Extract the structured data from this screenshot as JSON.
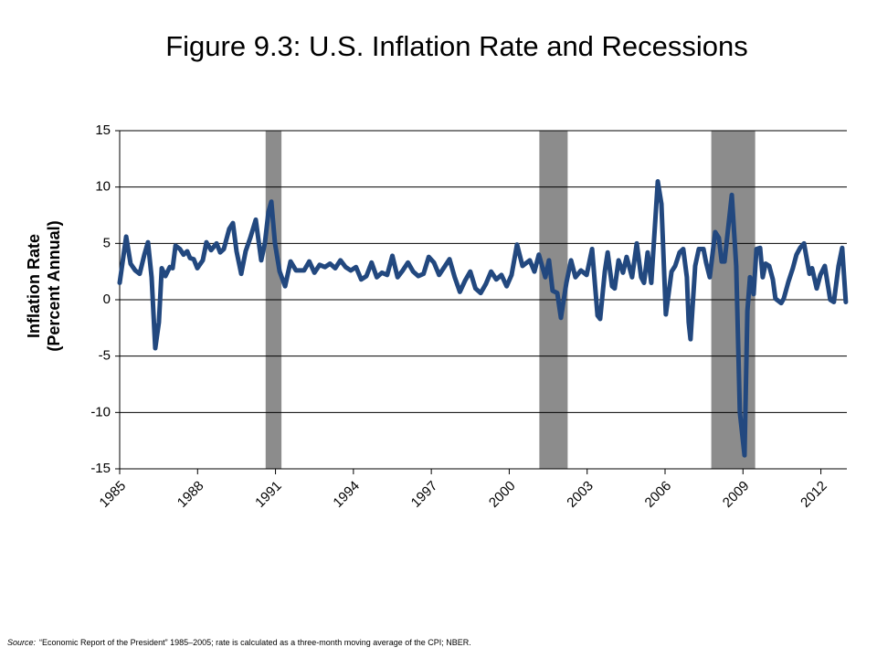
{
  "chart_data": {
    "type": "line",
    "title": "Figure 9.3: U.S. Inflation Rate and Recessions",
    "ylabel": [
      "Inflation Rate",
      "(Percent Annual)"
    ],
    "source": {
      "label": "Source:",
      "text": "“Economic Report of the President” 1985–2005; rate is calculated as a three-month moving average of the CPI; NBER."
    },
    "xlim": [
      1985,
      2013
    ],
    "xticks": [
      1985,
      1988,
      1991,
      1994,
      1997,
      2000,
      2003,
      2006,
      2009,
      2012
    ],
    "ylim": [
      -15,
      15
    ],
    "yticks": [
      -15,
      -10,
      -5,
      0,
      5,
      10,
      15
    ],
    "grid": true,
    "recessions": {
      "color": "#8c8c8c",
      "spans": [
        [
          1990.62,
          1991.23
        ],
        [
          2001.16,
          2002.25
        ],
        [
          2007.78,
          2009.47
        ]
      ]
    },
    "x": [
      1985.0,
      1985.25,
      1985.42,
      1985.6,
      1985.77,
      1985.95,
      1986.09,
      1986.23,
      1986.37,
      1986.51,
      1986.62,
      1986.76,
      1986.93,
      1987.04,
      1987.15,
      1987.32,
      1987.46,
      1987.6,
      1987.71,
      1987.85,
      1987.99,
      1988.2,
      1988.34,
      1988.52,
      1988.73,
      1988.87,
      1989.01,
      1989.22,
      1989.36,
      1989.5,
      1989.68,
      1989.85,
      1990.03,
      1990.24,
      1990.45,
      1990.59,
      1990.73,
      1990.84,
      1990.98,
      1991.16,
      1991.37,
      1991.58,
      1991.79,
      1992.1,
      1992.3,
      1992.5,
      1992.7,
      1992.9,
      1993.1,
      1993.3,
      1993.5,
      1993.7,
      1993.9,
      1994.1,
      1994.3,
      1994.5,
      1994.7,
      1994.9,
      1995.1,
      1995.3,
      1995.5,
      1995.7,
      1995.9,
      1996.1,
      1996.3,
      1996.5,
      1996.7,
      1996.9,
      1997.1,
      1997.3,
      1997.5,
      1997.7,
      1997.9,
      1998.1,
      1998.3,
      1998.5,
      1998.7,
      1998.9,
      1999.1,
      1999.3,
      1999.5,
      1999.7,
      1999.9,
      2000.09,
      2000.3,
      2000.51,
      2000.79,
      2000.97,
      2001.14,
      2001.39,
      2001.53,
      2001.67,
      2001.85,
      2001.99,
      2002.2,
      2002.38,
      2002.55,
      2002.76,
      2002.98,
      2003.19,
      2003.4,
      2003.5,
      2003.68,
      2003.79,
      2003.96,
      2004.06,
      2004.21,
      2004.38,
      2004.52,
      2004.73,
      2004.91,
      2005.08,
      2005.19,
      2005.33,
      2005.47,
      2005.72,
      2005.86,
      2006.03,
      2006.25,
      2006.39,
      2006.56,
      2006.7,
      2006.84,
      2006.91,
      2006.98,
      2007.16,
      2007.3,
      2007.48,
      2007.58,
      2007.72,
      2007.93,
      2008.07,
      2008.18,
      2008.29,
      2008.57,
      2008.74,
      2008.88,
      2009.06,
      2009.17,
      2009.27,
      2009.41,
      2009.52,
      2009.66,
      2009.76,
      2009.87,
      2010.01,
      2010.15,
      2010.25,
      2010.47,
      2010.57,
      2010.75,
      2010.92,
      2011.06,
      2011.2,
      2011.35,
      2011.56,
      2011.66,
      2011.84,
      2011.98,
      2012.15,
      2012.36,
      2012.5,
      2012.68,
      2012.82,
      2012.96
    ],
    "series": [
      {
        "name": "Inflation Rate",
        "color": "#22487f",
        "values": [
          1.5,
          5.6,
          3.2,
          2.6,
          2.3,
          4.0,
          5.1,
          2.0,
          -4.3,
          -2.0,
          2.8,
          2.1,
          2.9,
          2.8,
          4.8,
          4.5,
          4.0,
          4.3,
          3.7,
          3.6,
          2.8,
          3.5,
          5.1,
          4.4,
          5.0,
          4.2,
          4.5,
          6.3,
          6.8,
          4.3,
          2.3,
          4.3,
          5.5,
          7.1,
          3.5,
          5.0,
          7.8,
          8.7,
          5.0,
          2.5,
          1.2,
          3.4,
          2.6,
          2.6,
          3.4,
          2.4,
          3.1,
          2.9,
          3.2,
          2.8,
          3.5,
          2.9,
          2.6,
          2.9,
          1.8,
          2.1,
          3.3,
          2.0,
          2.4,
          2.2,
          3.9,
          2.0,
          2.6,
          3.3,
          2.5,
          2.1,
          2.3,
          3.8,
          3.3,
          2.2,
          2.9,
          3.6,
          2.0,
          0.7,
          1.7,
          2.5,
          1.0,
          0.6,
          1.4,
          2.5,
          1.8,
          2.2,
          1.2,
          2.2,
          4.9,
          3.0,
          3.5,
          2.5,
          4.0,
          2.0,
          3.5,
          0.8,
          0.6,
          -1.6,
          1.5,
          3.5,
          2.0,
          2.6,
          2.2,
          4.5,
          -1.4,
          -1.7,
          2.5,
          4.2,
          1.2,
          1.0,
          3.5,
          2.4,
          3.8,
          2.0,
          5.0,
          2.0,
          1.5,
          4.2,
          1.5,
          10.5,
          8.5,
          -1.3,
          2.5,
          3.0,
          4.2,
          4.5,
          2.0,
          -2.0,
          -3.5,
          3.0,
          4.5,
          4.5,
          3.3,
          2.0,
          6.0,
          5.5,
          3.4,
          3.4,
          9.3,
          3.0,
          -10.0,
          -13.8,
          -1.0,
          2.0,
          0.5,
          4.5,
          4.6,
          2.0,
          3.2,
          3.0,
          1.8,
          0.1,
          -0.3,
          0.1,
          1.6,
          2.8,
          4.0,
          4.6,
          5.0,
          2.3,
          2.8,
          1.0,
          2.2,
          3.0,
          0.0,
          -0.2,
          3.0,
          4.6,
          -0.2
        ]
      }
    ]
  }
}
